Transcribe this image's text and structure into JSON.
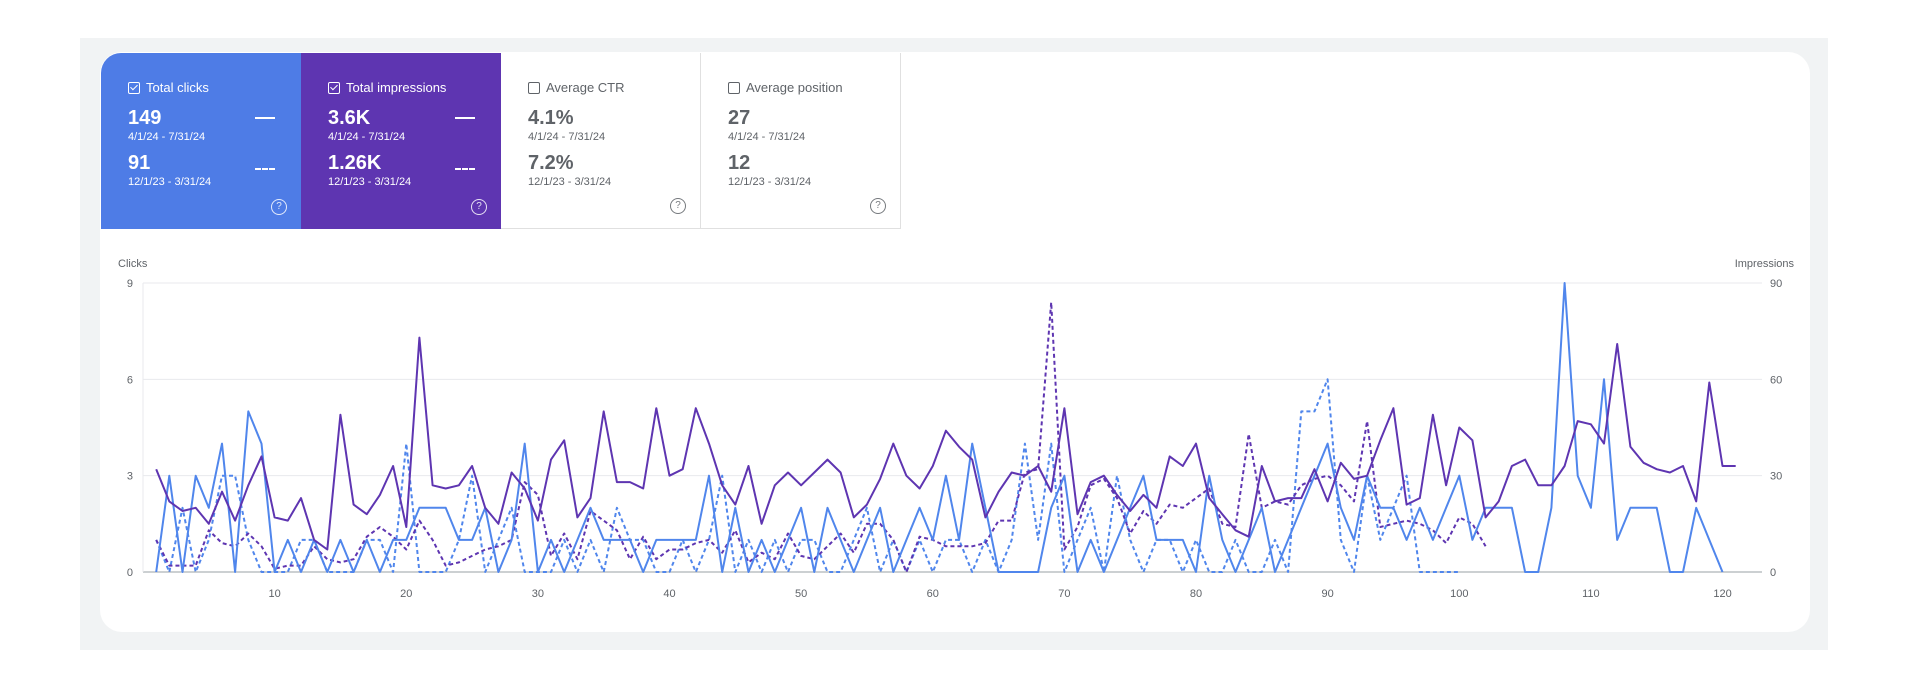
{
  "cards": [
    {
      "label": "Total clicks",
      "checked": true,
      "bg": "#4e7ce6",
      "color": "#ffffff",
      "value1": "149",
      "date1": "4/1/24 - 7/31/24",
      "value2": "91",
      "date2": "12/1/23 - 3/31/24"
    },
    {
      "label": "Total impressions",
      "checked": true,
      "bg": "#5e35b1",
      "color": "#ffffff",
      "value1": "3.6K",
      "date1": "4/1/24 - 7/31/24",
      "value2": "1.26K",
      "date2": "12/1/23 - 3/31/24"
    },
    {
      "label": "Average CTR",
      "checked": false,
      "value1": "4.1%",
      "date1": "4/1/24 - 7/31/24",
      "value2": "7.2%",
      "date2": "12/1/23 - 3/31/24"
    },
    {
      "label": "Average position",
      "checked": false,
      "value1": "27",
      "date1": "4/1/24 - 7/31/24",
      "value2": "12",
      "date2": "12/1/23 - 3/31/24"
    }
  ],
  "help_icon": "?",
  "chart_data": {
    "type": "line",
    "ylabel": "Clicks",
    "y2label": "Impressions",
    "xlim": [
      0,
      123
    ],
    "ylim": [
      0,
      9
    ],
    "y2lim": [
      0,
      90
    ],
    "xticks": [
      10,
      20,
      30,
      40,
      50,
      60,
      70,
      80,
      90,
      100,
      110,
      120
    ],
    "yticks": [
      0,
      3,
      6,
      9
    ],
    "y2ticks": [
      0,
      30,
      60,
      90
    ],
    "grid": true,
    "colors": {
      "clicks": "#5086ec",
      "impressions": "#5e35b1"
    },
    "series": [
      {
        "key": "clicks_current",
        "axis": "left",
        "dashed": false,
        "color": "#5086ec",
        "x_start": 1,
        "values": [
          0,
          3,
          0,
          3,
          2,
          4,
          0,
          5,
          4,
          0,
          1,
          0,
          1,
          0,
          1,
          0,
          1,
          0,
          1,
          1,
          2,
          2,
          2,
          1,
          1,
          2,
          0,
          1,
          4,
          0,
          1,
          0,
          1,
          2,
          1,
          1,
          1,
          0,
          1,
          1,
          1,
          1,
          3,
          0,
          2,
          0,
          1,
          0,
          1,
          2,
          0,
          2,
          1,
          0,
          1,
          2,
          0,
          1,
          2,
          1,
          3,
          1,
          4,
          2,
          0,
          0,
          0,
          0,
          2,
          3,
          0,
          1,
          0,
          1,
          2,
          3,
          1,
          1,
          1,
          0,
          3,
          1,
          0,
          1,
          2,
          0,
          1,
          2,
          3,
          4,
          2,
          1,
          3,
          2,
          2,
          1,
          2,
          1,
          2,
          3,
          1,
          2,
          2,
          2,
          0,
          0,
          2,
          9,
          3,
          2,
          6,
          1,
          2,
          2,
          2,
          0,
          0,
          2,
          1,
          0
        ]
      },
      {
        "key": "clicks_previous",
        "axis": "left",
        "dashed": true,
        "color": "#5086ec",
        "x_start": 1,
        "values": [
          1,
          0,
          2,
          0,
          1,
          3,
          3,
          1,
          0,
          0,
          0,
          1,
          1,
          0,
          0,
          0,
          1,
          1,
          0,
          4,
          0,
          0,
          0,
          1,
          3,
          0,
          1,
          2,
          0,
          0,
          0,
          1,
          0,
          1,
          0,
          2,
          1,
          1,
          0,
          0,
          1,
          0,
          1,
          3,
          0,
          1,
          0,
          1,
          0,
          1,
          1,
          0,
          0,
          1,
          2,
          0,
          1,
          0,
          1,
          0,
          1,
          1,
          0,
          1,
          0,
          1,
          4,
          1,
          4,
          0,
          1,
          2,
          0,
          3,
          1,
          0,
          1,
          1,
          0,
          1,
          0,
          0,
          1,
          0,
          0,
          1,
          0,
          5,
          5,
          6,
          1,
          0,
          3,
          1,
          2,
          3,
          0,
          0,
          0,
          0
        ]
      },
      {
        "key": "impressions_current",
        "axis": "right",
        "dashed": false,
        "color": "#5e35b1",
        "x_start": 1,
        "values": [
          32,
          22,
          19,
          20,
          15,
          25,
          16,
          27,
          36,
          17,
          16,
          23,
          10,
          7,
          49,
          21,
          18,
          24,
          33,
          14,
          73,
          27,
          26,
          27,
          33,
          20,
          15,
          31,
          26,
          16,
          35,
          41,
          17,
          23,
          50,
          28,
          28,
          26,
          51,
          30,
          32,
          51,
          40,
          27,
          21,
          33,
          15,
          27,
          31,
          27,
          31,
          35,
          31,
          17,
          21,
          29,
          40,
          30,
          26,
          33,
          44,
          39,
          35,
          17,
          25,
          31,
          30,
          33,
          25,
          51,
          18,
          28,
          30,
          24,
          19,
          24,
          20,
          36,
          33,
          40,
          23,
          18,
          13,
          11,
          33,
          22,
          23,
          23,
          32,
          22,
          34,
          29,
          30,
          41,
          51,
          21,
          23,
          49,
          27,
          45,
          41,
          17,
          22,
          33,
          35,
          27,
          27,
          33,
          47,
          46,
          40,
          71,
          39,
          34,
          32,
          31,
          33,
          22,
          59,
          33,
          33
        ]
      },
      {
        "key": "impressions_previous",
        "axis": "right",
        "dashed": true,
        "color": "#5e35b1",
        "x_start": 1,
        "values": [
          10,
          2,
          2,
          2,
          13,
          9,
          8,
          12,
          8,
          1,
          2,
          2,
          8,
          4,
          3,
          4,
          11,
          14,
          11,
          7,
          16,
          10,
          2,
          3,
          5,
          7,
          8,
          10,
          28,
          24,
          5,
          12,
          4,
          19,
          16,
          13,
          4,
          11,
          4,
          7,
          7,
          9,
          10,
          6,
          13,
          3,
          6,
          4,
          12,
          5,
          4,
          8,
          12,
          6,
          15,
          15,
          10,
          0,
          11,
          10,
          8,
          8,
          8,
          9,
          16,
          16,
          31,
          32,
          84,
          7,
          14,
          27,
          29,
          23,
          12,
          19,
          15,
          21,
          20,
          23,
          26,
          15,
          14,
          43,
          20,
          22,
          21,
          27,
          29,
          30,
          27,
          22,
          47,
          14,
          15,
          16,
          15,
          13,
          9,
          17,
          15,
          8
        ]
      }
    ]
  }
}
